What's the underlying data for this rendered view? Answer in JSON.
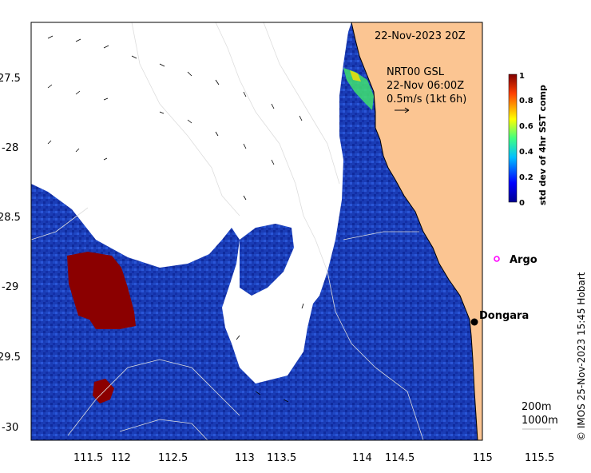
{
  "map": {
    "date_label": "22-Nov-2023 20Z",
    "current_source": "NRT00 GSL",
    "current_time": "22-Nov 06:00Z",
    "current_scale": "0.5m/s (1kt 6h)",
    "credit": "© IMOS 25-Nov-2023 15:45 Hobart",
    "places": [
      {
        "name": "Argo",
        "marker": "magenta-circle",
        "lon": 115.0,
        "lat": -28.85
      },
      {
        "name": "Dongara",
        "marker": "black-dot",
        "lon": 114.93,
        "lat": -29.25
      }
    ],
    "depth_legend": [
      "200m",
      "1000m"
    ],
    "lon_ticks": [
      "111.5",
      "112",
      "112.5",
      "113",
      "113.5",
      "114",
      "114.5",
      "115",
      "115.5"
    ],
    "lat_ticks": [
      "27.5",
      "-28",
      "28.5",
      "-29",
      "29.5",
      "-30"
    ],
    "colors": {
      "land": "#fbc592",
      "no_data": "#ffffff",
      "ocean_low": "#1a3cb5",
      "ocean_high": "#8b0000",
      "depth_contour": "#ffffff"
    }
  },
  "colorbar": {
    "label": "std dev of 4hr SST comp",
    "ticks": [
      "1",
      "0.8",
      "0.6",
      "0.4",
      "0.2",
      "0"
    ],
    "colormap": "jet"
  }
}
